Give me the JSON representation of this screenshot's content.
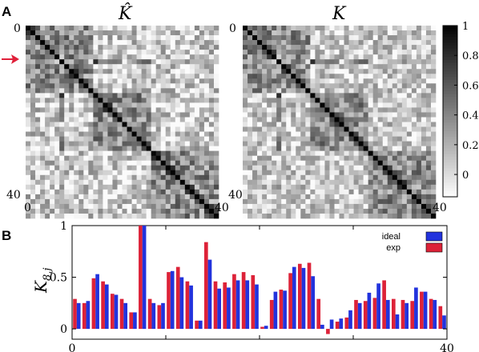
{
  "panel_a": {
    "label": "A",
    "left_title": "K̂",
    "right_title": "K",
    "tick_start": "0",
    "tick_end": "40",
    "arrow_color": "#e0203a",
    "colorbar": {
      "ticks": [
        "1",
        "0.8",
        "0.6",
        "0.4",
        "0.2",
        "0"
      ]
    }
  },
  "panel_b": {
    "label": "B",
    "ylabel_main": "K",
    "ylabel_sub": "8,j",
    "xticks": [
      "0",
      "40"
    ],
    "yticks": [
      "1",
      "0.5",
      "0"
    ],
    "legend": [
      {
        "label": "ideal",
        "color": "#2233dd"
      },
      {
        "label": "exp",
        "color": "#dd2238"
      }
    ]
  },
  "chart_data": [
    {
      "type": "heatmap",
      "title": "K̂",
      "size": 40,
      "range": [
        0,
        1
      ],
      "description_of_values": "40x40 symmetric similarity matrix with unit diagonal, grayscale (white=0, black=1)"
    },
    {
      "type": "heatmap",
      "title": "K",
      "size": 40,
      "range": [
        0,
        1
      ]
    },
    {
      "type": "bar",
      "ylabel": "K_{8,j}",
      "xlim": [
        0,
        40
      ],
      "ylim": [
        0,
        1
      ],
      "categories": [
        1,
        2,
        3,
        4,
        5,
        6,
        7,
        8,
        9,
        10,
        11,
        12,
        13,
        14,
        15,
        16,
        17,
        18,
        19,
        20,
        21,
        22,
        23,
        24,
        25,
        26,
        27,
        28,
        29,
        30,
        31,
        32,
        33,
        34,
        35,
        36,
        37,
        38,
        39,
        40
      ],
      "series": [
        {
          "name": "ideal",
          "values": [
            0.25,
            0.27,
            0.53,
            0.43,
            0.33,
            0.25,
            0.16,
            1.0,
            0.25,
            0.25,
            0.56,
            0.5,
            0.42,
            0.08,
            0.67,
            0.39,
            0.4,
            0.47,
            0.47,
            0.43,
            0.03,
            0.36,
            0.37,
            0.6,
            0.59,
            0.51,
            0.04,
            0.09,
            0.1,
            0.18,
            0.25,
            0.35,
            0.44,
            0.28,
            0.14,
            0.25,
            0.4,
            0.36,
            0.28,
            0.13
          ]
        },
        {
          "name": "exp",
          "values": [
            0.29,
            0.25,
            0.49,
            0.46,
            0.34,
            0.29,
            0.16,
            1.0,
            0.29,
            0.23,
            0.55,
            0.6,
            0.46,
            0.08,
            0.84,
            0.46,
            0.45,
            0.53,
            0.55,
            0.52,
            0.02,
            0.28,
            0.38,
            0.54,
            0.63,
            0.64,
            0.29,
            -0.05,
            0.07,
            0.11,
            0.28,
            0.27,
            0.3,
            0.47,
            0.29,
            0.28,
            0.27,
            0.36,
            0.29,
            0.22
          ]
        }
      ]
    }
  ]
}
